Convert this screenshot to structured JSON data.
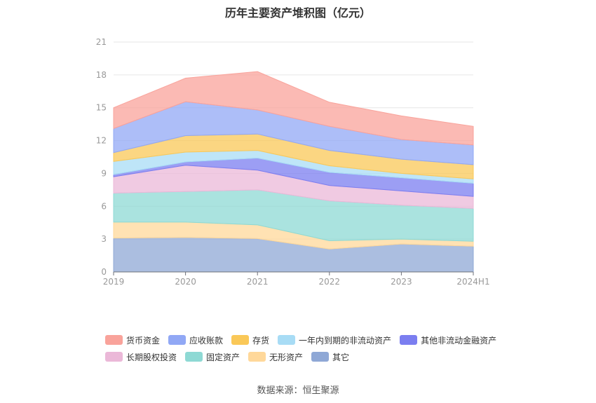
{
  "chart_data": {
    "type": "area",
    "stacked": true,
    "title": "历年主要资产堆积图（亿元）",
    "categories": [
      "2019",
      "2020",
      "2021",
      "2022",
      "2023",
      "2024H1"
    ],
    "ylim": [
      0,
      21
    ],
    "yticks": [
      "0",
      "3",
      "6",
      "9",
      "12",
      "15",
      "18",
      "21"
    ],
    "grid": true,
    "legend_position": "bottom",
    "series": [
      {
        "name": "其它",
        "color": "#8fa8d6",
        "values": [
          3.1,
          3.15,
          3.05,
          2.1,
          2.55,
          2.35
        ]
      },
      {
        "name": "无形资产",
        "color": "#ffd89a",
        "values": [
          1.45,
          1.4,
          1.25,
          0.75,
          0.45,
          0.45
        ]
      },
      {
        "name": "固定资产",
        "color": "#8ed9d4",
        "values": [
          2.65,
          2.8,
          3.2,
          3.65,
          3.1,
          3.0
        ]
      },
      {
        "name": "长期股权投资",
        "color": "#ebb8d8",
        "values": [
          1.5,
          2.4,
          1.8,
          1.4,
          1.3,
          1.1
        ]
      },
      {
        "name": "其他非流动金融资产",
        "color": "#7b7ef0",
        "values": [
          0.2,
          0.3,
          1.1,
          1.2,
          1.2,
          1.2
        ]
      },
      {
        "name": "一年内到期的非流动资产",
        "color": "#a8dcf5",
        "values": [
          1.2,
          0.9,
          0.7,
          0.6,
          0.4,
          0.4
        ]
      },
      {
        "name": "存货",
        "color": "#fac858",
        "values": [
          0.8,
          1.5,
          1.5,
          1.4,
          1.3,
          1.3
        ]
      },
      {
        "name": "应收账款",
        "color": "#91a8f5",
        "values": [
          2.2,
          3.1,
          2.2,
          2.2,
          1.8,
          1.8
        ]
      },
      {
        "name": "货币资金",
        "color": "#f9a39b",
        "values": [
          1.9,
          2.15,
          3.5,
          2.2,
          2.15,
          1.7
        ]
      }
    ]
  },
  "legend_order": [
    [
      "货币资金",
      "应收账款",
      "存货",
      "一年内到期的非流动资产",
      "其他非流动金融资产"
    ],
    [
      "长期股权投资",
      "固定资产",
      "无形资产",
      "其它"
    ]
  ],
  "source": "数据来源：恒生聚源"
}
